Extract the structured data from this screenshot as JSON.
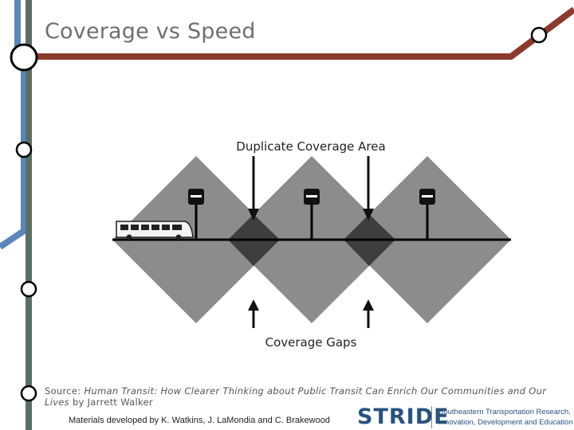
{
  "slide": {
    "title": "Coverage vs Speed"
  },
  "diagram": {
    "top_label": "Duplicate Coverage Area",
    "bottom_label": "Coverage Gaps",
    "stop_count": 3
  },
  "source": {
    "prefix": "Source: ",
    "book_title": "Human Transit: How Clearer Thinking about Public Transit Can Enrich Our Communities and Our Lives",
    "suffix": " by Jarrett Walker"
  },
  "footer": {
    "credits": "Materials developed by K. Watkins, J. LaMondia and C. Brakewood",
    "logo": "STRIDE",
    "org_line1": "Southeastern Transportation Research,",
    "org_line2": "Innovation, Development and Education Center"
  },
  "colors": {
    "blue_line": "#5b86b9",
    "red_line": "#8b3a2e",
    "gray_line": "#596f66",
    "diamond_fill": "#8c8c8c",
    "overlap_fill": "#3e3e3e"
  }
}
